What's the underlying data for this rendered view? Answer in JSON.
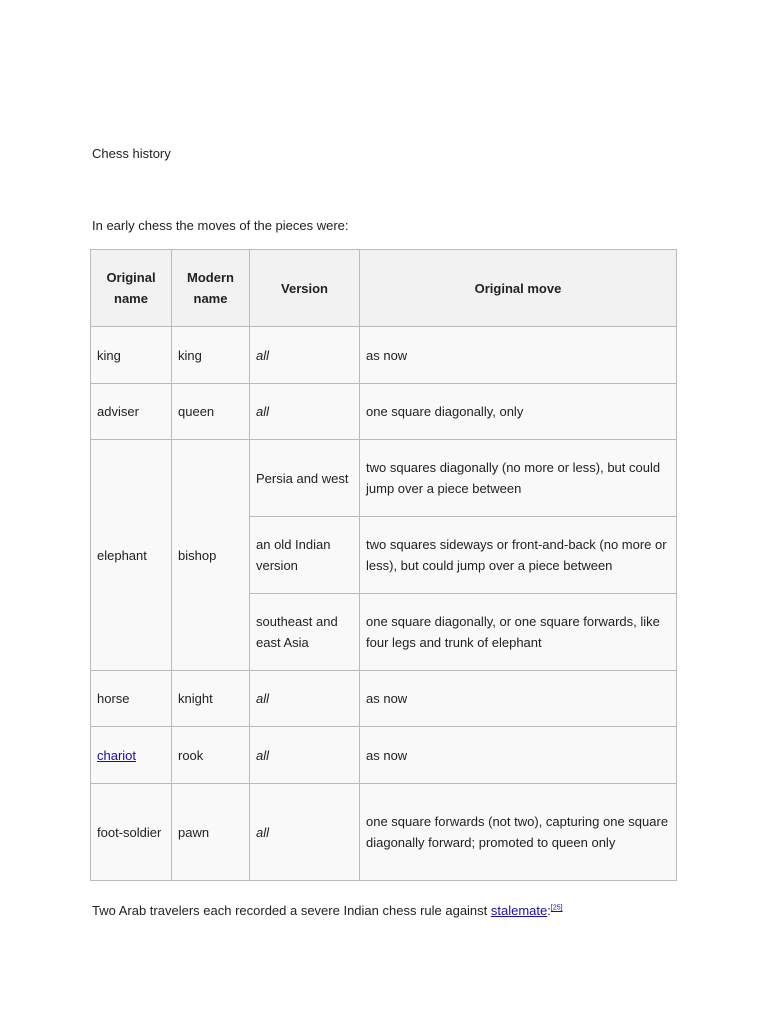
{
  "title": "Chess history",
  "intro": "In early chess the moves of the pieces were:",
  "table": {
    "headers": [
      "Original name",
      "Modern name",
      "Version",
      "Original move"
    ],
    "rows": {
      "king": {
        "original": "king",
        "modern": "king",
        "version": "all",
        "move": "as now"
      },
      "adviser": {
        "original": "adviser",
        "modern": "queen",
        "version": "all",
        "move": "one square diagonally, only"
      },
      "elephant": {
        "original": "elephant",
        "modern": "bishop",
        "variants": [
          {
            "version": "Persia and west",
            "move": "two squares diagonally (no more or less), but could jump over a piece between"
          },
          {
            "version": "an old Indian version",
            "move": "two squares sideways or front-and-back (no more or less), but could jump over a piece between"
          },
          {
            "version": "southeast and east Asia",
            "move": "one square diagonally, or one square forwards, like four legs and trunk of elephant"
          }
        ]
      },
      "horse": {
        "original": "horse",
        "modern": "knight",
        "version": "all",
        "move": "as now"
      },
      "chariot": {
        "original": "chariot",
        "modern": "rook",
        "version": "all",
        "move": "as now"
      },
      "foot_soldier": {
        "original": "foot-soldier",
        "modern": "pawn",
        "version": "all",
        "move": "one square forwards (not two), capturing one square diagonally forward; promoted to queen only"
      }
    }
  },
  "outro": {
    "text": "Two Arab travelers each recorded a severe Indian chess rule against ",
    "link": "stalemate",
    "colon": ":",
    "ref": "[25]"
  },
  "colors": {
    "link": "#1a0dab",
    "header_bg": "#f2f2f2",
    "border": "#bbbbbb"
  }
}
